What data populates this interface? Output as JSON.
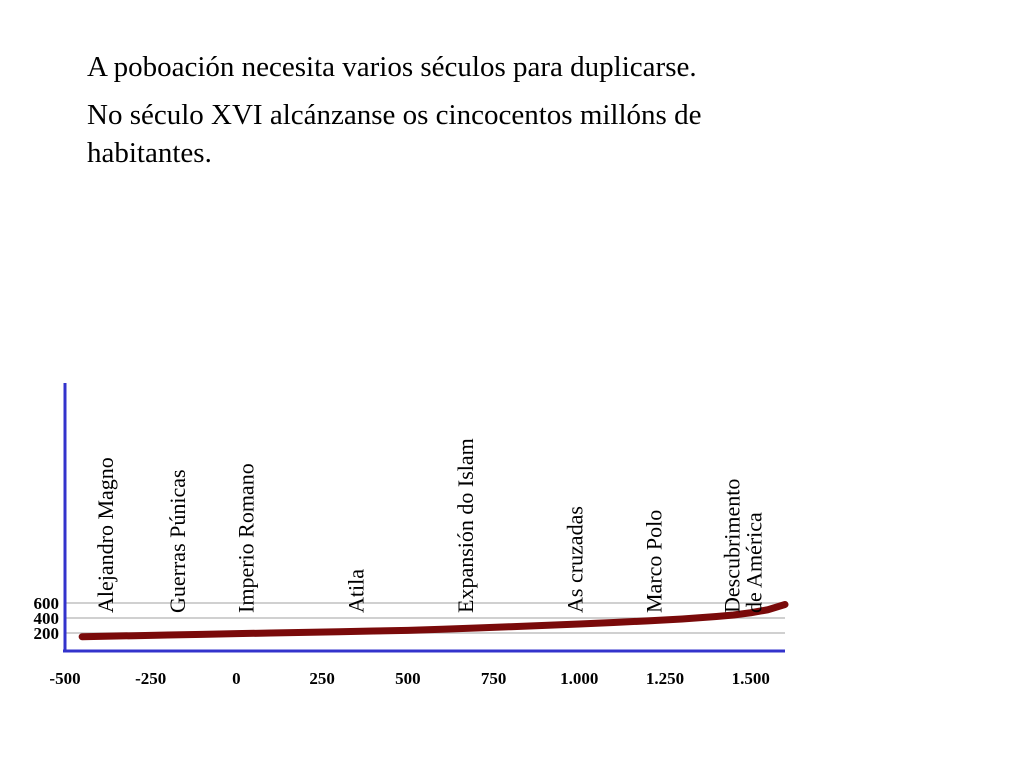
{
  "paragraphs": [
    "A poboación necesita varios séculos para duplicarse.",
    "No século XVI alcánzanse os cincocentos millóns de habitantes."
  ],
  "chart_data": {
    "type": "line",
    "x": [
      -450,
      -400,
      -300,
      -200,
      -100,
      0,
      100,
      200,
      300,
      400,
      500,
      600,
      700,
      800,
      900,
      1000,
      1100,
      1200,
      1300,
      1400,
      1450,
      1500,
      1550,
      1600
    ],
    "series": [
      {
        "values": [
          150,
          155,
          164,
          173,
          182,
          191,
          200,
          208,
          217,
          226,
          235,
          250,
          266,
          284,
          302,
          320,
          340,
          362,
          386,
          420,
          440,
          470,
          510,
          580
        ]
      }
    ],
    "xticks": [
      -500,
      -250,
      0,
      250,
      500,
      750,
      1000,
      1250,
      1500
    ],
    "xtick_labels": [
      "-500",
      "-250",
      "0",
      "250",
      "500",
      "750",
      "1.000",
      "1.250",
      "1.500"
    ],
    "yticks": [
      200,
      400,
      600
    ],
    "ytick_labels": [
      "200",
      "400",
      "600"
    ],
    "xlim": [
      -500,
      1600
    ],
    "ylim": [
      0,
      3200
    ],
    "grid": "horizontal",
    "annotations": [
      {
        "lines": [
          "Alejandro Magno"
        ],
        "x": -360
      },
      {
        "lines": [
          "Guerras Púnicas"
        ],
        "x": -150
      },
      {
        "lines": [
          "Imperio Romano"
        ],
        "x": 50
      },
      {
        "lines": [
          "Atila"
        ],
        "x": 370
      },
      {
        "lines": [
          "Expansión do Islam"
        ],
        "x": 690
      },
      {
        "lines": [
          "As cruzadas"
        ],
        "x": 1010
      },
      {
        "lines": [
          "Marco Polo"
        ],
        "x": 1240
      },
      {
        "lines": [
          "Descubrimento",
          "de América"
        ],
        "x": 1500
      }
    ],
    "colors": {
      "axis": "#3333cc",
      "line": "#7a0a0a",
      "grid": "#c0c0c0"
    }
  }
}
